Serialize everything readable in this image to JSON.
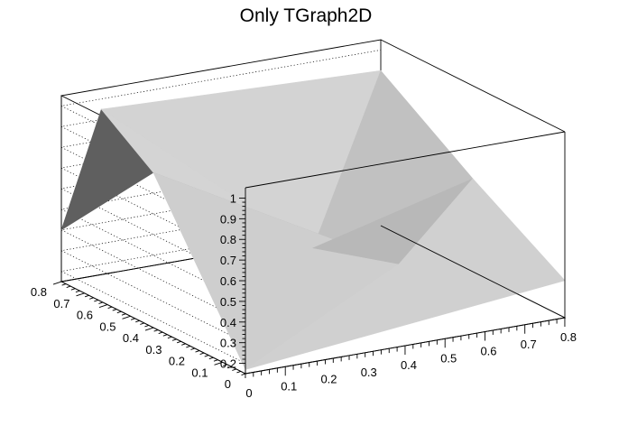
{
  "chart_data": {
    "type": "surface",
    "title": "Only TGraph2D",
    "xlabel": "",
    "ylabel": "",
    "zlabel": "",
    "xlim": [
      0,
      0.8
    ],
    "ylim": [
      0,
      0.8
    ],
    "zlim": [
      0.15,
      1.05
    ],
    "x_ticks": [
      "0",
      "0.1",
      "0.2",
      "0.3",
      "0.4",
      "0.5",
      "0.6",
      "0.7",
      "0.8"
    ],
    "y_ticks": [
      "0",
      "0.1",
      "0.2",
      "0.3",
      "0.4",
      "0.5",
      "0.6",
      "0.7",
      "0.8"
    ],
    "z_ticks": [
      "0.2",
      "0.3",
      "0.4",
      "0.5",
      "0.6",
      "0.7",
      "0.8",
      "0.9",
      "1"
    ],
    "grid": true,
    "surface_color": "#c8c8c8",
    "points": [
      {
        "x": 0.0,
        "y": 0.0,
        "z": 0.17
      },
      {
        "x": 0.8,
        "y": 0.0,
        "z": 0.33
      },
      {
        "x": 0.0,
        "y": 0.8,
        "z": 0.4
      },
      {
        "x": 0.8,
        "y": 0.8,
        "z": 0.9
      },
      {
        "x": 0.4,
        "y": 0.4,
        "z": 0.4
      },
      {
        "x": 0.0,
        "y": 0.4,
        "z": 0.9
      },
      {
        "x": 0.1,
        "y": 0.8,
        "z": 0.95
      },
      {
        "x": 0.8,
        "y": 0.4,
        "z": 0.6
      },
      {
        "x": 0.5,
        "y": 0.2,
        "z": 0.4
      }
    ],
    "triangles": [
      [
        0,
        8,
        1
      ],
      [
        0,
        5,
        8
      ],
      [
        5,
        4,
        8
      ],
      [
        8,
        7,
        1
      ],
      [
        8,
        4,
        7
      ],
      [
        4,
        3,
        7
      ],
      [
        5,
        6,
        4
      ],
      [
        6,
        3,
        4
      ],
      [
        5,
        2,
        6
      ]
    ]
  }
}
